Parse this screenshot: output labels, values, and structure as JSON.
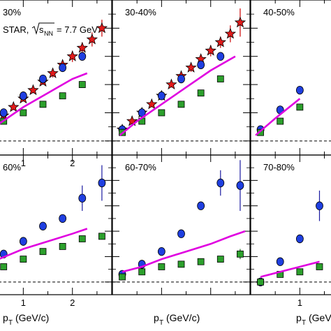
{
  "figure": {
    "experiment_label": "STAR,",
    "energy_label": {
      "sqrt": "s",
      "sub": "NN",
      "rest": "= 7.7 GeV"
    },
    "xlabel": {
      "main": "p",
      "sub": "T",
      "rest": "(GeV/c)"
    }
  },
  "chart_data": [
    {
      "type": "scatter",
      "title": "30%",
      "xlim": [
        0,
        2.8
      ],
      "ylim": [
        -0.05,
        0.5
      ],
      "x_ticks": [
        "1",
        "2"
      ],
      "grid": false,
      "zero_line": "dashed",
      "series": [
        {
          "marker": "star-red",
          "x": [
            0.2,
            0.4,
            0.6,
            0.8,
            1.0,
            1.2,
            1.4,
            1.6,
            1.8,
            2.0,
            2.2,
            2.4,
            2.6
          ],
          "y": [
            0.03,
            0.06,
            0.09,
            0.12,
            0.15,
            0.18,
            0.21,
            0.24,
            0.27,
            0.3,
            0.33,
            0.36,
            0.4
          ],
          "err": [
            0.01,
            0.01,
            0.01,
            0.01,
            0.01,
            0.01,
            0.01,
            0.015,
            0.015,
            0.02,
            0.02,
            0.025,
            0.03
          ]
        },
        {
          "marker": "circle-blue",
          "x": [
            0.2,
            0.6,
            1.0,
            1.4,
            1.8,
            2.2
          ],
          "y": [
            0.04,
            0.1,
            0.16,
            0.22,
            0.26,
            0.3
          ],
          "err": [
            0,
            0,
            0,
            0,
            0,
            0
          ]
        },
        {
          "marker": "square-green",
          "x": [
            0.2,
            0.6,
            1.0,
            1.4,
            1.8,
            2.2
          ],
          "y": [
            0.03,
            0.07,
            0.1,
            0.13,
            0.16,
            0.2
          ],
          "err": [
            0,
            0,
            0,
            0,
            0,
            0
          ]
        },
        {
          "marker": "line-magenta",
          "x": [
            0,
            0.5,
            1.0,
            1.5,
            2.0,
            2.3
          ],
          "y": [
            0.0,
            0.06,
            0.12,
            0.17,
            0.22,
            0.24
          ]
        }
      ]
    },
    {
      "type": "scatter",
      "title": "30-40%",
      "xlim": [
        0,
        2.8
      ],
      "ylim": [
        -0.05,
        0.5
      ],
      "x_ticks": [],
      "grid": false,
      "zero_line": "dashed",
      "series": [
        {
          "marker": "star-red",
          "x": [
            0.2,
            0.4,
            0.6,
            0.8,
            1.0,
            1.2,
            1.4,
            1.6,
            1.8,
            2.0,
            2.2,
            2.4,
            2.6
          ],
          "y": [
            0.04,
            0.07,
            0.1,
            0.13,
            0.16,
            0.2,
            0.23,
            0.26,
            0.29,
            0.32,
            0.35,
            0.38,
            0.42
          ],
          "err": [
            0.01,
            0.01,
            0.01,
            0.01,
            0.01,
            0.01,
            0.01,
            0.015,
            0.015,
            0.02,
            0.02,
            0.03,
            0.05
          ]
        },
        {
          "marker": "circle-blue",
          "x": [
            0.2,
            0.6,
            1.0,
            1.4,
            1.8,
            2.2
          ],
          "y": [
            0.04,
            0.1,
            0.16,
            0.22,
            0.27,
            0.3
          ],
          "err": [
            0,
            0,
            0,
            0,
            0,
            0
          ]
        },
        {
          "marker": "square-green",
          "x": [
            0.2,
            0.6,
            1.0,
            1.4,
            1.8,
            2.2
          ],
          "y": [
            0.03,
            0.07,
            0.1,
            0.13,
            0.17,
            0.22
          ],
          "err": [
            0,
            0,
            0,
            0,
            0,
            0
          ]
        },
        {
          "marker": "line-magenta",
          "x": [
            0.15,
            0.5,
            1.0,
            1.5,
            2.0,
            2.5
          ],
          "y": [
            0.02,
            0.07,
            0.13,
            0.19,
            0.25,
            0.3
          ]
        }
      ]
    },
    {
      "type": "scatter",
      "title": "40-50%",
      "xlim": [
        0,
        2.8
      ],
      "ylim": [
        -0.05,
        0.5
      ],
      "x_ticks": [],
      "grid": false,
      "zero_line": "dashed",
      "series": [
        {
          "marker": "circle-blue",
          "x": [
            0.2,
            0.6,
            1.0
          ],
          "y": [
            0.04,
            0.11,
            0.18
          ],
          "err": [
            0,
            0,
            0
          ]
        },
        {
          "marker": "square-green",
          "x": [
            0.2,
            0.6,
            1.0
          ],
          "y": [
            0.03,
            0.07,
            0.12
          ],
          "err": [
            0,
            0,
            0
          ]
        },
        {
          "marker": "line-magenta",
          "x": [
            0.1,
            0.5,
            1.0
          ],
          "y": [
            0.02,
            0.08,
            0.15
          ]
        }
      ]
    },
    {
      "type": "scatter",
      "title": "60%",
      "xlim": [
        0,
        2.8
      ],
      "ylim": [
        -0.05,
        0.5
      ],
      "x_ticks": [
        "1",
        "2"
      ],
      "grid": false,
      "zero_line": "dashed",
      "series": [
        {
          "marker": "circle-blue",
          "x": [
            0.2,
            0.6,
            1.0,
            1.4,
            1.8,
            2.2,
            2.6
          ],
          "y": [
            0.04,
            0.11,
            0.16,
            0.22,
            0.25,
            0.33,
            0.39
          ],
          "err": [
            0,
            0,
            0,
            0,
            0,
            0.05,
            0.07
          ]
        },
        {
          "marker": "square-green",
          "x": [
            0.2,
            0.6,
            1.0,
            1.4,
            1.8,
            2.2,
            2.6
          ],
          "y": [
            0.03,
            0.06,
            0.09,
            0.12,
            0.14,
            0.17,
            0.18
          ],
          "err": [
            0,
            0,
            0,
            0,
            0,
            0,
            0
          ]
        },
        {
          "marker": "line-magenta",
          "x": [
            0,
            0.5,
            1.0,
            1.5,
            2.0,
            2.3
          ],
          "y": [
            0.04,
            0.09,
            0.13,
            0.16,
            0.19,
            0.21
          ]
        }
      ]
    },
    {
      "type": "scatter",
      "title": "60-70%",
      "xlim": [
        0,
        2.8
      ],
      "ylim": [
        -0.05,
        0.5
      ],
      "x_ticks": [],
      "grid": false,
      "zero_line": "dashed",
      "series": [
        {
          "marker": "circle-blue",
          "x": [
            0.2,
            0.6,
            1.0,
            1.4,
            1.8,
            2.2,
            2.6
          ],
          "y": [
            0.03,
            0.07,
            0.12,
            0.19,
            0.3,
            0.39,
            0.38
          ],
          "err": [
            0,
            0,
            0,
            0,
            0,
            0.05,
            0.1
          ]
        },
        {
          "marker": "square-green",
          "x": [
            0.2,
            0.6,
            1.0,
            1.4,
            1.8,
            2.2,
            2.6
          ],
          "y": [
            0.02,
            0.04,
            0.06,
            0.07,
            0.08,
            0.09,
            0.11
          ],
          "err": [
            0,
            0,
            0,
            0,
            0,
            0,
            0.02
          ]
        },
        {
          "marker": "line-magenta",
          "x": [
            0.2,
            0.6,
            1.0,
            1.5,
            2.0,
            2.4,
            2.7
          ],
          "y": [
            0.04,
            0.06,
            0.09,
            0.12,
            0.15,
            0.18,
            0.2
          ]
        }
      ]
    },
    {
      "type": "scatter",
      "title": "70-80%",
      "xlim": [
        0,
        2.8
      ],
      "ylim": [
        -0.05,
        0.5
      ],
      "x_ticks": [
        "1"
      ],
      "grid": false,
      "zero_line": "dashed",
      "series": [
        {
          "marker": "circle-blue",
          "x": [
            0.2,
            0.6,
            1.0,
            1.4
          ],
          "y": [
            0.0,
            0.08,
            0.17,
            0.3
          ],
          "err": [
            0,
            0,
            0,
            0.06
          ]
        },
        {
          "marker": "square-green",
          "x": [
            0.2,
            0.6,
            1.0,
            1.4
          ],
          "y": [
            0.0,
            0.03,
            0.04,
            0.06
          ],
          "err": [
            0,
            0,
            0,
            0
          ]
        },
        {
          "marker": "line-magenta",
          "x": [
            0.2,
            0.6,
            1.0,
            1.4
          ],
          "y": [
            0.02,
            0.04,
            0.06,
            0.08
          ]
        }
      ]
    }
  ]
}
